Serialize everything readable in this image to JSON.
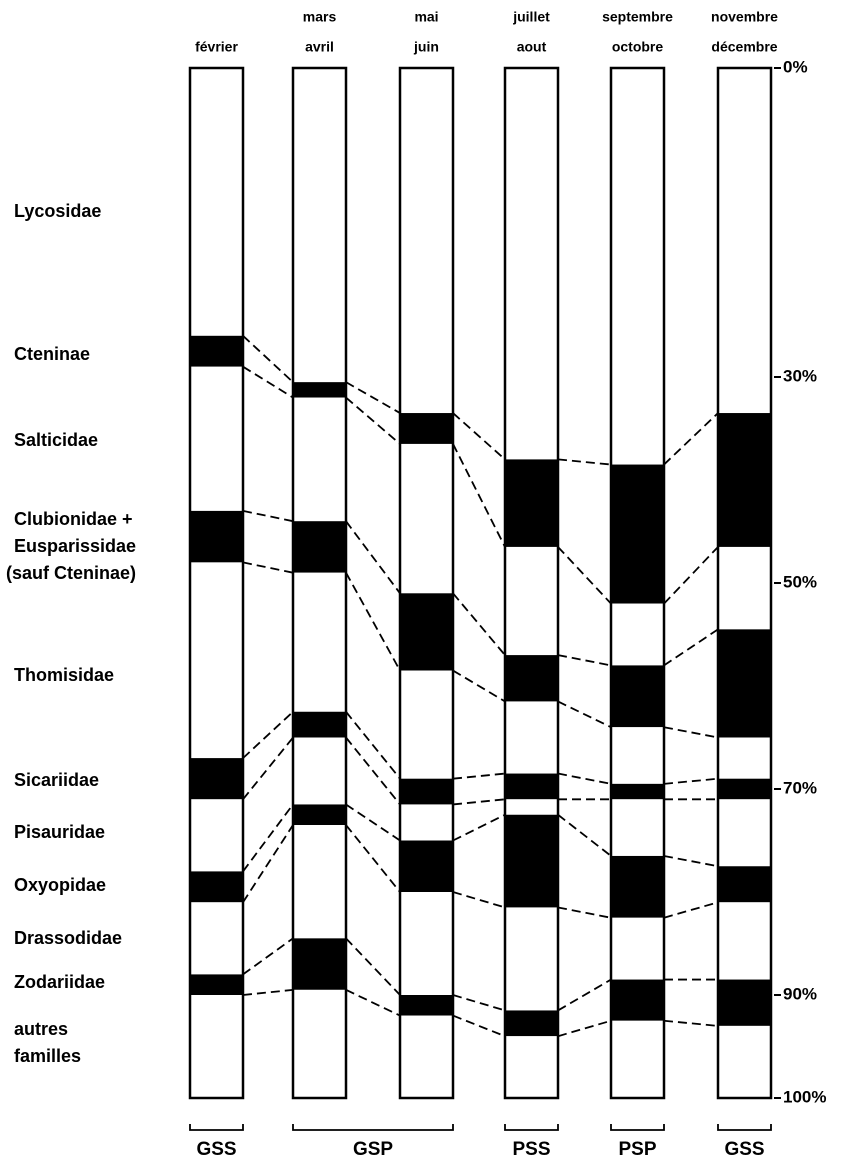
{
  "chart_data": {
    "type": "stacked-column",
    "categories": [
      [
        "février"
      ],
      [
        "mars",
        "avril"
      ],
      [
        "mai",
        "juin"
      ],
      [
        "juillet",
        "aout"
      ],
      [
        "septembre",
        "octobre"
      ],
      [
        "novembre",
        "décembre"
      ]
    ],
    "groups": [
      "GSS",
      "GSP",
      "PSS",
      "PSP",
      "GSS"
    ],
    "ylim": [
      0,
      100
    ],
    "yticks": [
      {
        "value": 0,
        "label": "0%"
      },
      {
        "value": 30,
        "label": "30%"
      },
      {
        "value": 50,
        "label": "50%"
      },
      {
        "value": 70,
        "label": "70%"
      },
      {
        "value": 90,
        "label": "90%"
      },
      {
        "value": 100,
        "label": "100%"
      }
    ],
    "series": [
      {
        "name": [
          "Lycosidae"
        ],
        "color": "#ffffff",
        "values": [
          26,
          30.5,
          33.5,
          38,
          38.5,
          33.5
        ]
      },
      {
        "name": [
          "Cteninae"
        ],
        "color": "#000000",
        "values": [
          3,
          1.5,
          3,
          8.5,
          13.5,
          13
        ]
      },
      {
        "name": [
          "Salticidae"
        ],
        "color": "#ffffff",
        "values": [
          14,
          12,
          14.5,
          10.5,
          6,
          8
        ]
      },
      {
        "name": [
          "Clubionidae +",
          "Eusparissidae",
          "(sauf Cteninae)"
        ],
        "color": "#000000",
        "values": [
          5,
          5,
          7.5,
          4.5,
          6,
          10.5
        ]
      },
      {
        "name": [
          "Thomisidae"
        ],
        "color": "#ffffff",
        "values": [
          19,
          13.5,
          10.5,
          7,
          5.5,
          4
        ]
      },
      {
        "name": [
          "Sicariidae"
        ],
        "color": "#000000",
        "values": [
          4,
          2.5,
          2.5,
          2.5,
          1.5,
          2
        ]
      },
      {
        "name": [
          "Pisauridae"
        ],
        "color": "#ffffff",
        "values": [
          7,
          6.5,
          3.5,
          1.5,
          5.5,
          6.5
        ]
      },
      {
        "name": [
          "Oxyopidae"
        ],
        "color": "#000000",
        "values": [
          3,
          2,
          5,
          9,
          6,
          3.5
        ]
      },
      {
        "name": [
          "Drassodidae"
        ],
        "color": "#ffffff",
        "values": [
          7,
          11,
          10,
          10,
          6,
          7.5
        ]
      },
      {
        "name": [
          "Zodariidae"
        ],
        "color": "#000000",
        "values": [
          2,
          5,
          2,
          2.5,
          4,
          4.5
        ]
      },
      {
        "name": [
          "autres",
          "familles"
        ],
        "color": "#ffffff",
        "values": [
          10,
          10.5,
          8,
          6,
          7.5,
          7
        ]
      }
    ]
  }
}
